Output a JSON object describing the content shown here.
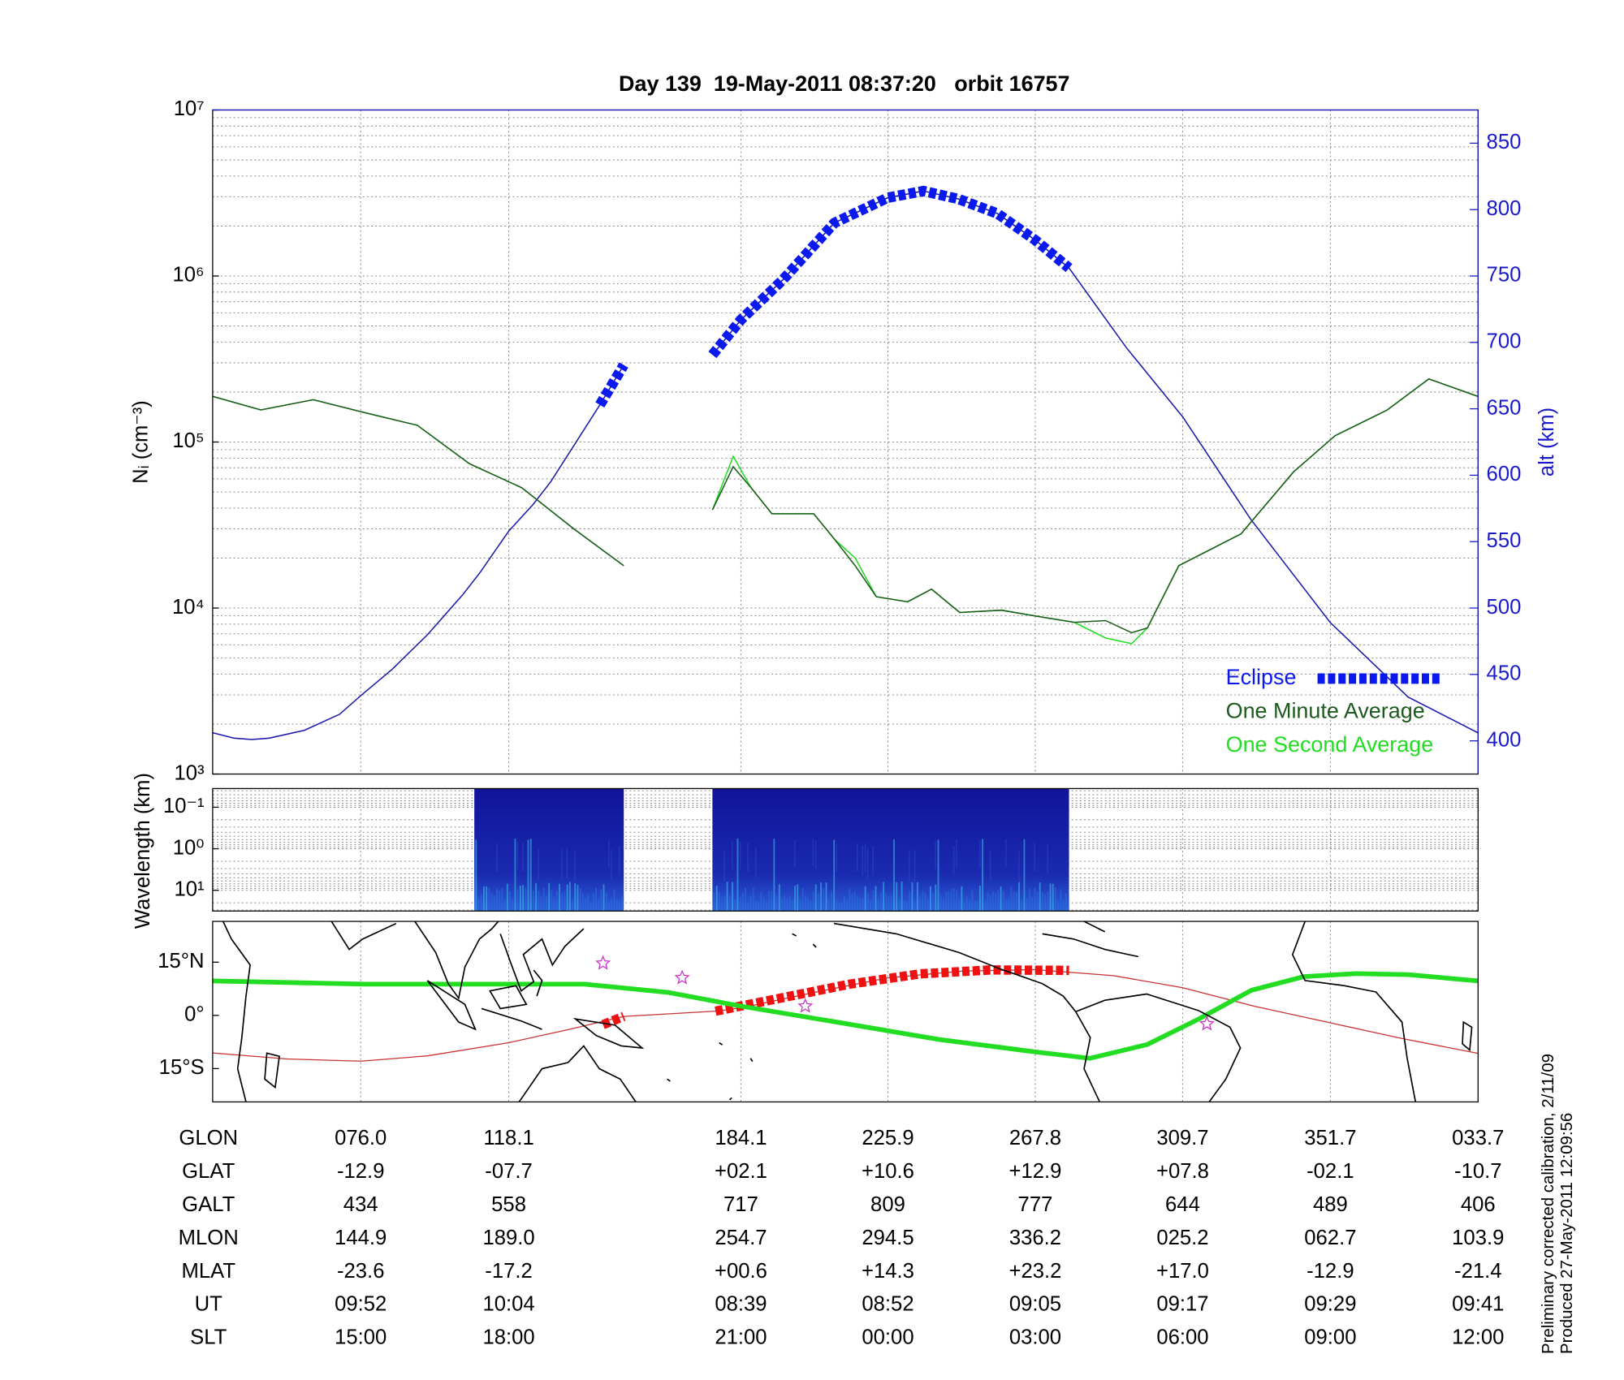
{
  "chart_data": [
    {
      "type": "line",
      "title": "Day 139  19-May-2011 08:37:20   orbit 16757",
      "ylabel": "Nᵢ (cm⁻³)",
      "y2label": "alt (km)",
      "xlim": [
        33.9,
        393.7
      ],
      "xticks": [
        76.0,
        118.1,
        184.1,
        225.9,
        267.8,
        309.7,
        351.7,
        393.7
      ],
      "log_y": true,
      "grid": true,
      "legend": "lower right",
      "ylim": [
        1000,
        10000000
      ],
      "yticks": [
        {
          "value": 1000,
          "label": "10³"
        },
        {
          "value": 10000,
          "label": "10⁴"
        },
        {
          "value": 100000,
          "label": "10⁵"
        },
        {
          "value": 1000000,
          "label": "10⁶"
        },
        {
          "value": 10000000,
          "label": "10⁷"
        }
      ],
      "yminorticks": [
        2000,
        3000,
        4000,
        5000,
        6000,
        7000,
        8000,
        9000,
        20000,
        30000,
        40000,
        50000,
        60000,
        70000,
        80000,
        90000,
        200000,
        300000,
        400000,
        500000,
        600000,
        700000,
        800000,
        900000,
        2000000,
        3000000,
        4000000,
        5000000,
        6000000,
        7000000,
        8000000,
        9000000
      ],
      "y2lim": [
        375,
        875
      ],
      "y2ticks": [
        400,
        450,
        500,
        550,
        600,
        650,
        700,
        750,
        800,
        850
      ],
      "y2color": "#1a1acc",
      "series": [
        {
          "axis": "y2",
          "color": "#1a1aaa",
          "x": [
            34,
            40,
            45,
            50,
            60,
            70,
            76,
            85,
            95,
            105,
            110,
            118.1,
            125,
            130,
            144,
            150.8,
            163,
            176.0,
            184.1,
            196,
            210.7,
            225.9,
            236,
            246,
            257,
            267.8,
            277.4,
            293.7,
            309.7,
            329,
            351.7,
            373.8,
            393.7
          ],
          "values": [
            406,
            402,
            401,
            402,
            408,
            420,
            434,
            454,
            480,
            510,
            527,
            558,
            578,
            595,
            653,
            683,
            null,
            690.6,
            717,
            747,
            790,
            809,
            814,
            808,
            797,
            777,
            756,
            696,
            644,
            567,
            489,
            433,
            406
          ]
        },
        {
          "name": "Eclipse",
          "axis": "y2",
          "color": "#0a1aee",
          "style": "dashed",
          "x": [
            144,
            147.4,
            150.8,
            163,
            176.0,
            184.1,
            196,
            210.7,
            225.9,
            236,
            246,
            257,
            267.8,
            277.4
          ],
          "values": [
            653,
            668,
            683,
            null,
            690.6,
            717,
            747,
            790,
            809,
            814,
            808,
            797,
            777,
            756
          ]
        },
        {
          "name": "One Minute Average",
          "color": "#1d5a1d",
          "x": [
            34,
            47.6,
            62.5,
            77.3,
            92.1,
            106.9,
            121.8,
            136.6,
            150.8,
            163,
            176.0,
            181.9,
            187.0,
            192.9,
            204.8,
            210.7,
            216.6,
            222.6,
            231.5,
            238.3,
            246.3,
            258.2,
            270.0,
            278.9,
            287.8,
            295.2,
            299.7,
            308.6,
            326.3,
            341.2,
            353.0,
            367.9,
            379.7,
            393.7
          ],
          "values": [
            188000,
            156000,
            180000,
            150000,
            126000,
            74000,
            53000,
            30000,
            18000,
            null,
            39000,
            71000,
            53000,
            37000,
            37000,
            26000,
            18000,
            11700,
            10900,
            13000,
            9400,
            9700,
            8800,
            8200,
            8400,
            7100,
            7600,
            18000,
            28000,
            66000,
            109000,
            156000,
            240000,
            188000
          ]
        },
        {
          "name": "One Second Average",
          "color": "#22dd22",
          "x": [
            34,
            47.6,
            62.5,
            77.3,
            92.1,
            106.9,
            121.8,
            136.6,
            150.8,
            163,
            176.0,
            181.9,
            187.0,
            192.9,
            204.8,
            210.7,
            216.6,
            222.6,
            231.5,
            238.3,
            246.3,
            258.2,
            270.0,
            278.9,
            287.8,
            295.2,
            299.7,
            308.6,
            326.3,
            341.2,
            353.0,
            367.9,
            379.7,
            393.7
          ],
          "values": [
            188000,
            156000,
            180000,
            150000,
            126000,
            74000,
            53000,
            30000,
            18000,
            null,
            39000,
            82000,
            53000,
            37000,
            37000,
            26000,
            20000,
            11700,
            10900,
            13000,
            9400,
            9700,
            8800,
            8200,
            6600,
            6100,
            7600,
            18000,
            28000,
            66000,
            109000,
            156000,
            240000,
            188000
          ]
        }
      ]
    },
    {
      "type": "spectrogram",
      "ylabel": "Wavelength (km)",
      "log_y": true,
      "grid": true,
      "xlim": [
        33.9,
        393.7
      ],
      "ylim": [
        31.6,
        0.0355
      ],
      "yticks": [
        {
          "value": 0.1,
          "label": "10⁻¹"
        },
        {
          "value": 1,
          "label": "10⁰"
        },
        {
          "value": 10,
          "label": "10¹"
        }
      ],
      "yminorticks": [
        0.04,
        0.05,
        0.06,
        0.07,
        0.08,
        0.09,
        0.2,
        0.3,
        0.4,
        0.5,
        0.6,
        0.7,
        0.8,
        0.9,
        2,
        3,
        4,
        5,
        6,
        7,
        8,
        9,
        20,
        30
      ],
      "x_ranges": [
        [
          108.3,
          150.8
        ],
        [
          176.0,
          277.4
        ]
      ],
      "color": "#1422a8"
    },
    {
      "type": "map",
      "grid": true,
      "xlim": [
        33.9,
        393.7
      ],
      "ylim": [
        -24.4,
        26.5
      ],
      "yticks": [
        {
          "value": 15,
          "label": "15°N"
        },
        {
          "value": 0,
          "label": "0°"
        },
        {
          "value": -15,
          "label": "15°S"
        }
      ],
      "series": [
        {
          "color": "#c83232",
          "x": [
            33.9,
            55,
            76,
            95,
            118.1,
            135,
            150.8,
            176.9,
            184.1,
            205,
            225.9,
            247,
            267.8,
            290,
            309.7,
            330,
            351.7,
            372,
            393.7
          ],
          "values": [
            -10.6,
            -12.3,
            -12.9,
            -11.4,
            -7.7,
            -4.0,
            -0.3,
            1.2,
            2.1,
            6.5,
            10.6,
            12.5,
            12.9,
            11.2,
            7.8,
            2.6,
            -2.1,
            -6.5,
            -10.7
          ]
        },
        {
          "color": "#ee1111",
          "style": "dashed",
          "x": [
            144.9,
            150.8,
            163,
            176.9,
            195,
            215,
            235,
            255,
            277.4
          ],
          "values": [
            -2.6,
            -0.3,
            null,
            1.2,
            4.8,
            8.8,
            11.7,
            12.8,
            12.7
          ]
        },
        {
          "color": "#22dd22",
          "style": "thick",
          "x": [
            33.9,
            77.3,
            121.8,
            139.6,
            163.3,
            184.1,
            210.7,
            240.4,
            267.8,
            283.3,
            299.7,
            314.5,
            329.3,
            344.1,
            358.9,
            373.8,
            393.7
          ],
          "values": [
            9.7,
            8.8,
            8.8,
            8.8,
            6.5,
            2.6,
            -1.8,
            -6.8,
            -10.3,
            -12.1,
            -8.2,
            -0.9,
            7.1,
            10.9,
            11.8,
            11.5,
            9.7
          ]
        },
        {
          "color": "#cc33cc",
          "style": "star",
          "x": [
            144.9,
            167.4,
            202.4,
            316.6
          ],
          "values": [
            14.7,
            10.6,
            2.6,
            -2.4
          ]
        }
      ]
    }
  ],
  "ephemeris": {
    "rows": [
      {
        "label": "GLON",
        "cells": [
          "076.0",
          "118.1",
          "184.1",
          "225.9",
          "267.8",
          "309.7",
          "351.7",
          "033.7"
        ]
      },
      {
        "label": "GLAT",
        "cells": [
          "-12.9",
          "-07.7",
          "+02.1",
          "+10.6",
          "+12.9",
          "+07.8",
          "-02.1",
          "-10.7"
        ]
      },
      {
        "label": "GALT",
        "cells": [
          "434",
          "558",
          "717",
          "809",
          "777",
          "644",
          "489",
          "406"
        ]
      },
      {
        "label": "MLON",
        "cells": [
          "144.9",
          "189.0",
          "254.7",
          "294.5",
          "336.2",
          "025.2",
          "062.7",
          "103.9"
        ]
      },
      {
        "label": "MLAT",
        "cells": [
          "-23.6",
          "-17.2",
          "+00.6",
          "+14.3",
          "+23.2",
          "+17.0",
          "-12.9",
          "-21.4"
        ]
      },
      {
        "label": "UT",
        "cells": [
          "09:52",
          "10:04",
          "08:39",
          "08:52",
          "09:05",
          "09:17",
          "09:29",
          "09:41"
        ]
      },
      {
        "label": "SLT",
        "cells": [
          "15:00",
          "18:00",
          "21:00",
          "00:00",
          "03:00",
          "06:00",
          "09:00",
          "12:00"
        ]
      }
    ]
  },
  "notes": [
    "Preliminary corrected calibration, 2/11/09",
    "Produced 27-May-2011 12:09:56"
  ]
}
